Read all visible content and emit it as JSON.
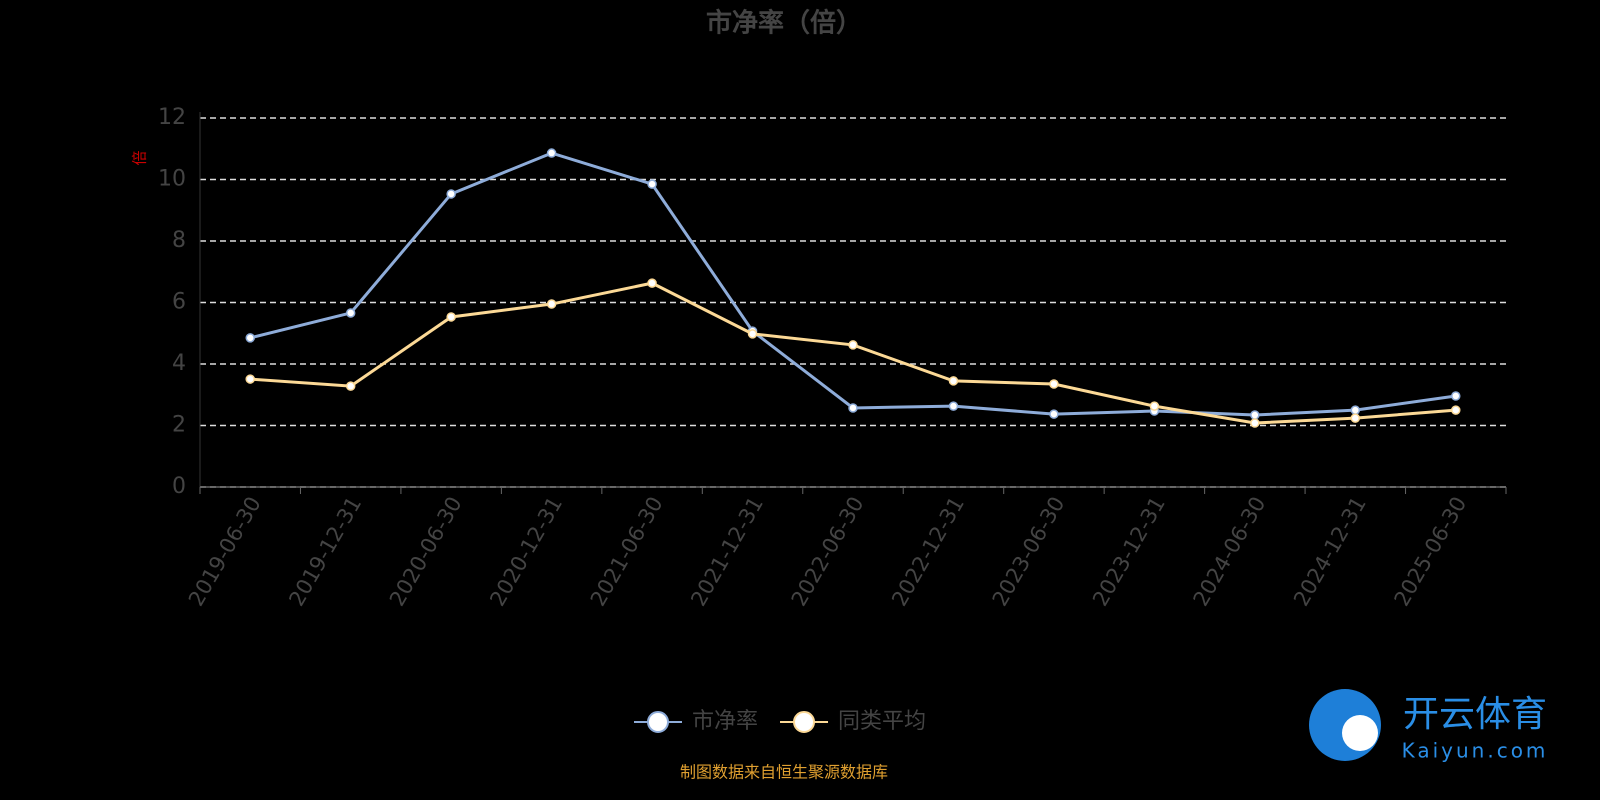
{
  "chart_data": {
    "type": "line",
    "title": "市净率（倍）",
    "y_label": "倍",
    "categories": [
      "2019-06-30",
      "2019-12-31",
      "2020-06-30",
      "2020-12-31",
      "2021-06-30",
      "2021-12-31",
      "2022-06-30",
      "2022-12-31",
      "2023-06-30",
      "2023-12-31",
      "2024-06-30",
      "2024-12-31",
      "2025-06-30"
    ],
    "series": [
      {
        "name": "市净率",
        "color": "#8eacd9",
        "values": [
          4.85,
          5.66,
          9.53,
          10.86,
          9.85,
          5.07,
          2.57,
          2.63,
          2.37,
          2.47,
          2.34,
          2.5,
          2.96
        ]
      },
      {
        "name": "同类平均",
        "color": "#fcd996",
        "values": [
          3.51,
          3.28,
          5.53,
          5.95,
          6.63,
          4.98,
          4.62,
          3.45,
          3.35,
          2.63,
          2.08,
          2.24,
          2.5
        ]
      }
    ],
    "ylim": [
      0,
      12
    ],
    "yticks": [
      0,
      2,
      4,
      6,
      8,
      10,
      12
    ],
    "grid": true,
    "legend": "bottom",
    "source": "制图数据来自恒生聚源数据库"
  },
  "watermark": {
    "brand": "开云体育",
    "site": "Kaiyun.com"
  }
}
